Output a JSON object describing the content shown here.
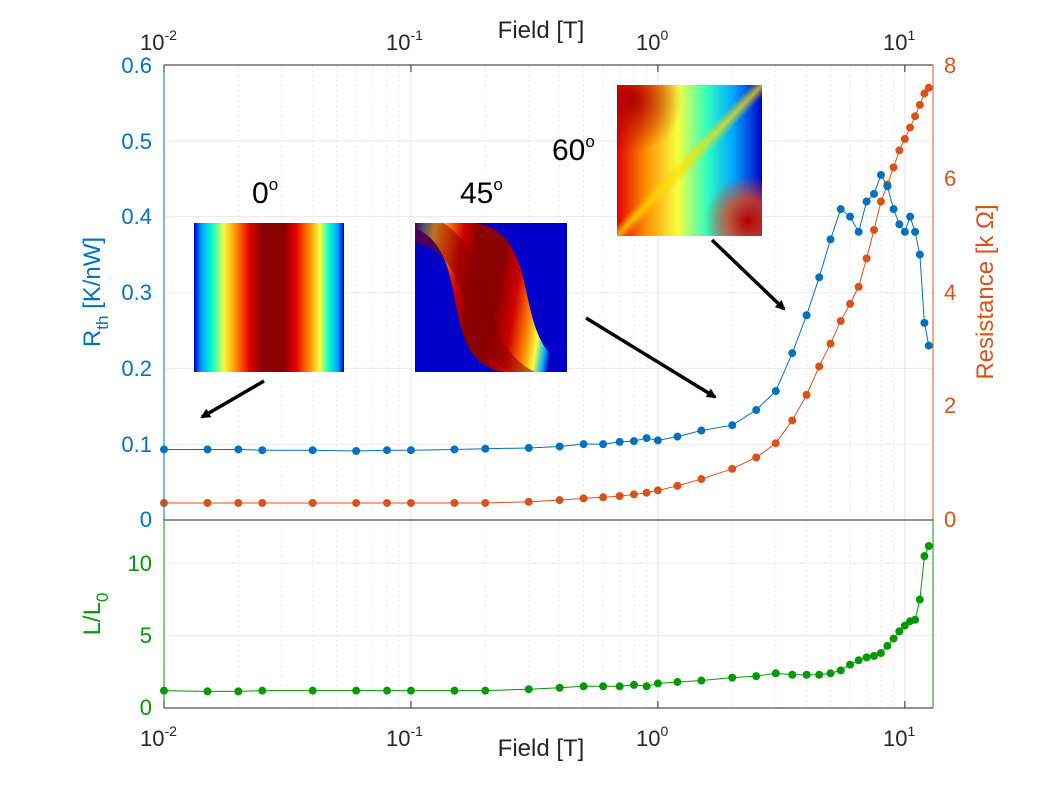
{
  "colors": {
    "rth": "#0072BD",
    "resistance": "#D95319",
    "lorenz": "#009900",
    "axis": "#262626",
    "grid": "#e6e6e6",
    "arrow": "#000000"
  },
  "x_axis": {
    "scale": "log",
    "range": [
      0.01,
      13
    ],
    "ticks": [
      0.01,
      0.1,
      1,
      10
    ],
    "tick_labels": [
      {
        "base": "10",
        "exp": "-2"
      },
      {
        "base": "10",
        "exp": "-1"
      },
      {
        "base": "10",
        "exp": "0"
      },
      {
        "base": "10",
        "exp": "1"
      }
    ],
    "top_label": "Field [T]",
    "bottom_label": "Field [T]"
  },
  "top_panel": {
    "left_axis": {
      "label_main": "R",
      "label_sub": "th",
      "label_rest": " [K/nW]",
      "range": [
        0,
        0.6
      ],
      "ticks": [
        "0",
        "0.1",
        "0.2",
        "0.3",
        "0.4",
        "0.5",
        "0.6"
      ]
    },
    "right_axis": {
      "label": "Resistance [k  Ω]",
      "range": [
        0,
        8
      ],
      "ticks": [
        "0",
        "2",
        "4",
        "6",
        "8"
      ]
    }
  },
  "bottom_panel": {
    "left_axis": {
      "label_main": "L/L",
      "label_sub": "0",
      "range": [
        0,
        13
      ],
      "ticks": [
        "0",
        "5",
        "10"
      ]
    }
  },
  "insets": [
    {
      "label_num": "0",
      "label_deg": "o",
      "pattern": "stripes"
    },
    {
      "label_num": "45",
      "label_deg": "o",
      "pattern": "s-curve"
    },
    {
      "label_num": "60",
      "label_deg": "o",
      "pattern": "diagonal"
    }
  ],
  "chart_data": [
    {
      "type": "scatter",
      "panel": "top",
      "x_scale": "log",
      "xlabel": "Field [T]",
      "ylabel": "R_th [K/nW]",
      "ylim": [
        0,
        0.6
      ],
      "series": [
        {
          "axis": "left",
          "x": [
            0.01,
            0.015,
            0.02,
            0.025,
            0.04,
            0.06,
            0.08,
            0.1,
            0.15,
            0.2,
            0.3,
            0.4,
            0.5,
            0.6,
            0.7,
            0.8,
            0.9,
            1.0,
            1.2,
            1.5,
            2.0,
            2.5,
            3.0,
            3.5,
            4.0,
            4.5,
            5.0,
            5.5,
            6.0,
            6.5,
            7.0,
            7.5,
            8.0,
            8.5,
            9.0,
            9.5,
            10.0,
            10.5,
            11.0,
            11.5,
            12.0,
            12.5
          ],
          "y": [
            0.093,
            0.093,
            0.093,
            0.092,
            0.092,
            0.091,
            0.092,
            0.092,
            0.093,
            0.094,
            0.095,
            0.097,
            0.1,
            0.1,
            0.103,
            0.104,
            0.108,
            0.105,
            0.11,
            0.118,
            0.125,
            0.145,
            0.17,
            0.22,
            0.27,
            0.32,
            0.37,
            0.41,
            0.4,
            0.38,
            0.42,
            0.43,
            0.455,
            0.44,
            0.41,
            0.39,
            0.38,
            0.4,
            0.38,
            0.35,
            0.26,
            0.23
          ]
        },
        {
          "axis": "right",
          "ylim": [
            0,
            8
          ],
          "x": [
            0.01,
            0.015,
            0.02,
            0.025,
            0.04,
            0.06,
            0.08,
            0.1,
            0.15,
            0.2,
            0.3,
            0.4,
            0.5,
            0.6,
            0.7,
            0.8,
            0.9,
            1.0,
            1.2,
            1.5,
            2.0,
            2.5,
            3.0,
            3.5,
            4.0,
            4.5,
            5.0,
            5.5,
            6.0,
            6.5,
            7.0,
            7.5,
            8.0,
            8.5,
            9.0,
            9.5,
            10.0,
            10.5,
            11.0,
            11.5,
            12.0,
            12.5
          ],
          "y": [
            0.3,
            0.3,
            0.3,
            0.3,
            0.3,
            0.3,
            0.3,
            0.3,
            0.3,
            0.3,
            0.32,
            0.35,
            0.38,
            0.4,
            0.42,
            0.45,
            0.48,
            0.52,
            0.6,
            0.72,
            0.9,
            1.1,
            1.35,
            1.75,
            2.2,
            2.7,
            3.1,
            3.5,
            3.8,
            4.1,
            4.6,
            5.1,
            5.6,
            5.9,
            6.2,
            6.5,
            6.7,
            6.9,
            7.1,
            7.3,
            7.5,
            7.6
          ]
        }
      ]
    },
    {
      "type": "scatter",
      "panel": "bottom",
      "x_scale": "log",
      "xlabel": "Field [T]",
      "ylabel": "L/L_0",
      "ylim": [
        0,
        13
      ],
      "series": [
        {
          "x": [
            0.01,
            0.015,
            0.02,
            0.025,
            0.04,
            0.06,
            0.08,
            0.1,
            0.15,
            0.2,
            0.3,
            0.4,
            0.5,
            0.6,
            0.7,
            0.8,
            0.9,
            1.0,
            1.2,
            1.5,
            2.0,
            2.5,
            3.0,
            3.5,
            4.0,
            4.5,
            5.0,
            5.5,
            6.0,
            6.5,
            7.0,
            7.5,
            8.0,
            8.5,
            9.0,
            9.5,
            10.0,
            10.5,
            11.0,
            11.5,
            12.0,
            12.5
          ],
          "y": [
            1.2,
            1.15,
            1.15,
            1.2,
            1.2,
            1.2,
            1.2,
            1.2,
            1.2,
            1.2,
            1.3,
            1.4,
            1.5,
            1.5,
            1.5,
            1.6,
            1.5,
            1.7,
            1.8,
            1.9,
            2.1,
            2.2,
            2.4,
            2.3,
            2.3,
            2.3,
            2.4,
            2.6,
            3.0,
            3.3,
            3.5,
            3.6,
            3.8,
            4.3,
            4.8,
            5.3,
            5.7,
            6.0,
            6.1,
            7.5,
            10.5,
            11.2
          ]
        }
      ]
    }
  ]
}
